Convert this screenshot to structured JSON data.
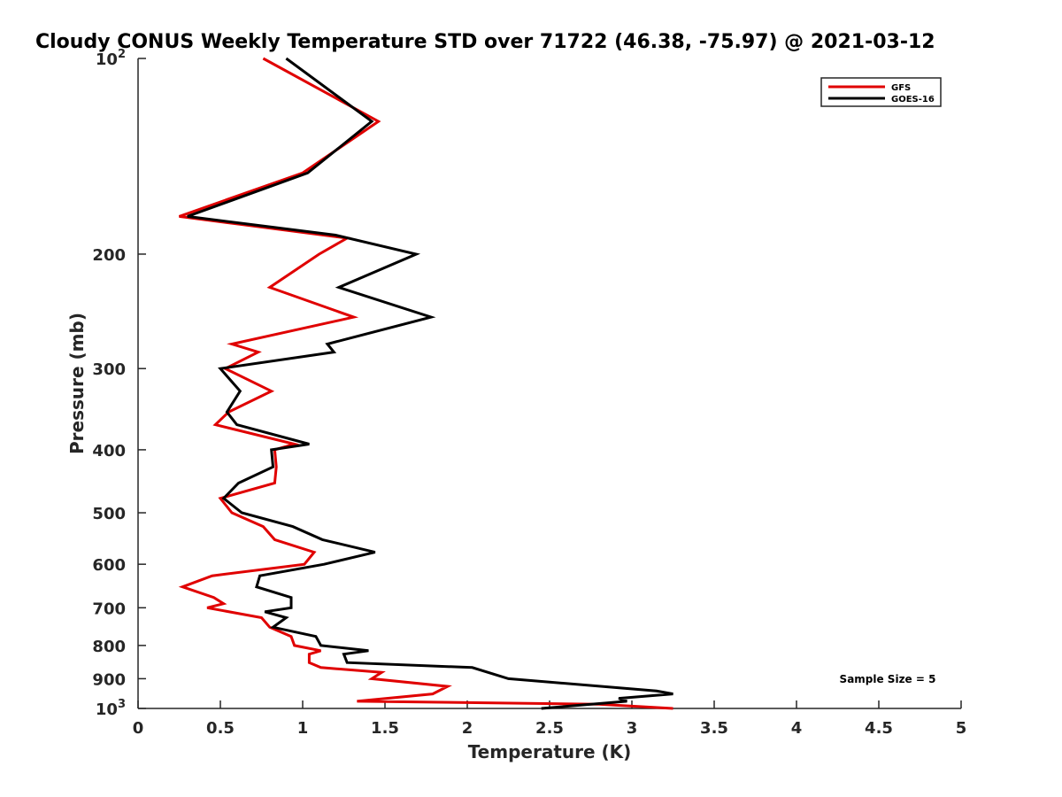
{
  "chart_data": {
    "type": "line",
    "title": "Cloudy CONUS Weekly Temperature STD over 71722 (46.38, -75.97) @ 2021-03-12",
    "xlabel": "Temperature (K)",
    "ylabel": "Pressure (mb)",
    "xlim": [
      0,
      5
    ],
    "ylim": [
      100,
      1000
    ],
    "y_scale": "log",
    "y_reversed": true,
    "grid": false,
    "legend_position": "top-right",
    "x_ticks": [
      "0",
      "0.5",
      "1",
      "1.5",
      "2",
      "2.5",
      "3",
      "3.5",
      "4",
      "4.5",
      "5"
    ],
    "y_ticks": [
      {
        "value": 100,
        "base": "10",
        "exp": "2"
      },
      {
        "value": 200,
        "label": "200"
      },
      {
        "value": 300,
        "label": "300"
      },
      {
        "value": 400,
        "label": "400"
      },
      {
        "value": 500,
        "label": "500"
      },
      {
        "value": 600,
        "label": "600"
      },
      {
        "value": 700,
        "label": "700"
      },
      {
        "value": 800,
        "label": "800"
      },
      {
        "value": 900,
        "label": "900"
      },
      {
        "value": 1000,
        "base": "10",
        "exp": "3"
      }
    ],
    "series": [
      {
        "name": "GFS",
        "color": "#e00000",
        "points": [
          [
            0.76,
            100
          ],
          [
            1.46,
            125
          ],
          [
            1.0,
            150
          ],
          [
            0.25,
            175
          ],
          [
            1.27,
            189
          ],
          [
            1.1,
            200
          ],
          [
            0.8,
            225
          ],
          [
            1.31,
            250
          ],
          [
            0.57,
            275
          ],
          [
            0.73,
            283
          ],
          [
            0.53,
            300
          ],
          [
            0.81,
            325
          ],
          [
            0.55,
            350
          ],
          [
            0.47,
            366
          ],
          [
            0.95,
            392
          ],
          [
            0.83,
            400
          ],
          [
            0.84,
            425
          ],
          [
            0.83,
            450
          ],
          [
            0.5,
            475
          ],
          [
            0.57,
            500
          ],
          [
            0.76,
            525
          ],
          [
            0.83,
            550
          ],
          [
            1.07,
            575
          ],
          [
            1.01,
            600
          ],
          [
            0.45,
            625
          ],
          [
            0.27,
            650
          ],
          [
            0.46,
            675
          ],
          [
            0.52,
            690
          ],
          [
            0.42,
            700
          ],
          [
            0.75,
            725
          ],
          [
            0.8,
            750
          ],
          [
            0.93,
            775
          ],
          [
            0.95,
            800
          ],
          [
            1.11,
            815
          ],
          [
            1.04,
            825
          ],
          [
            1.04,
            850
          ],
          [
            1.11,
            865
          ],
          [
            1.48,
            880
          ],
          [
            1.42,
            900
          ],
          [
            1.88,
            925
          ],
          [
            1.79,
            950
          ],
          [
            1.33,
            975
          ],
          [
            2.8,
            985
          ],
          [
            3.25,
            1000
          ]
        ]
      },
      {
        "name": "GOES-16",
        "color": "#000000",
        "points": [
          [
            0.9,
            100
          ],
          [
            1.42,
            125
          ],
          [
            1.03,
            150
          ],
          [
            0.3,
            175
          ],
          [
            1.2,
            187
          ],
          [
            1.69,
            200
          ],
          [
            1.22,
            225
          ],
          [
            1.78,
            250
          ],
          [
            1.15,
            275
          ],
          [
            1.19,
            283
          ],
          [
            0.5,
            300
          ],
          [
            0.62,
            325
          ],
          [
            0.54,
            350
          ],
          [
            0.6,
            366
          ],
          [
            1.04,
            392
          ],
          [
            0.81,
            400
          ],
          [
            0.82,
            425
          ],
          [
            0.61,
            450
          ],
          [
            0.52,
            475
          ],
          [
            0.63,
            500
          ],
          [
            0.94,
            525
          ],
          [
            1.12,
            550
          ],
          [
            1.44,
            575
          ],
          [
            1.13,
            600
          ],
          [
            0.74,
            625
          ],
          [
            0.72,
            650
          ],
          [
            0.93,
            675
          ],
          [
            0.93,
            700
          ],
          [
            0.77,
            710
          ],
          [
            0.9,
            725
          ],
          [
            0.82,
            750
          ],
          [
            1.08,
            775
          ],
          [
            1.11,
            800
          ],
          [
            1.4,
            815
          ],
          [
            1.25,
            825
          ],
          [
            1.27,
            850
          ],
          [
            2.03,
            865
          ],
          [
            2.25,
            900
          ],
          [
            3.15,
            940
          ],
          [
            3.25,
            950
          ],
          [
            2.92,
            965
          ],
          [
            2.97,
            975
          ],
          [
            2.45,
            1000
          ]
        ]
      }
    ],
    "legend": [
      "GFS",
      "GOES-16"
    ],
    "annotations": [
      "Sample Size = 5"
    ]
  }
}
